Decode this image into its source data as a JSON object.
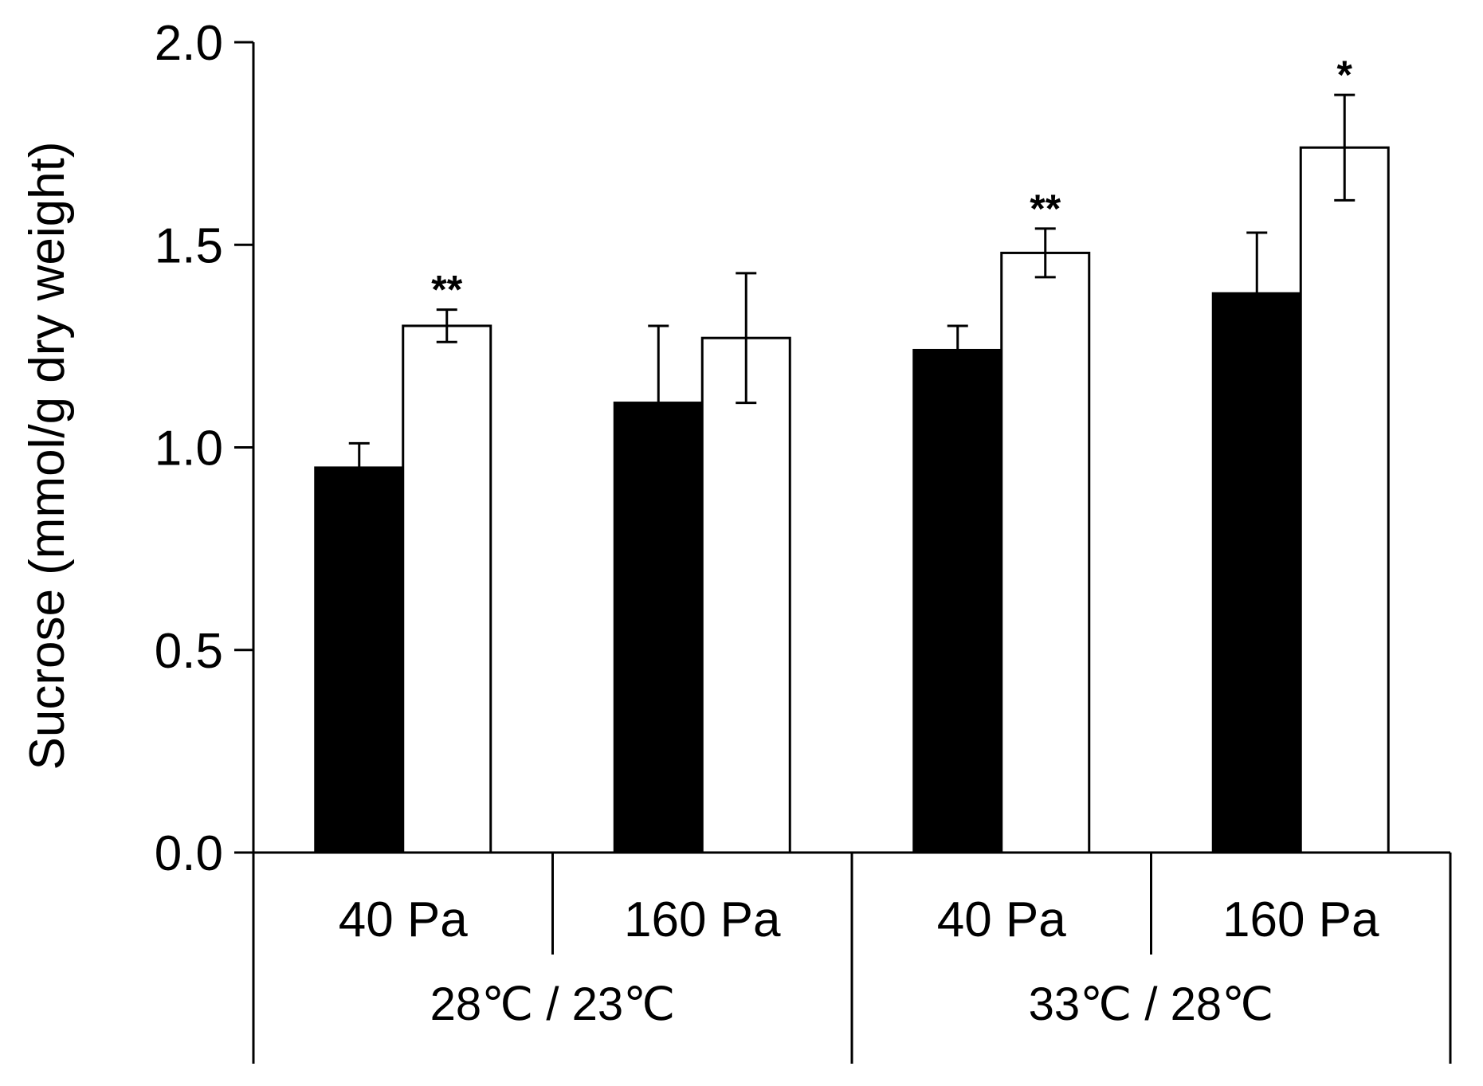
{
  "chart_data": {
    "type": "bar",
    "title": "",
    "ylabel": "Sucrose (mmol/g dry weight)",
    "xlabel": "",
    "ylim": [
      0,
      2.0
    ],
    "yticks": [
      "0.0",
      "0.5",
      "1.0",
      "1.5",
      "2.0"
    ],
    "ytick_values": [
      0,
      0.5,
      1.0,
      1.5,
      2.0
    ],
    "categories": [
      "40 Pa",
      "160 Pa",
      "40 Pa",
      "160 Pa"
    ],
    "groups": [
      {
        "label": "28℃ / 23℃",
        "span": [
          0,
          1
        ]
      },
      {
        "label": "33℃ / 28℃",
        "span": [
          2,
          3
        ]
      }
    ],
    "series": [
      {
        "name": "series-black",
        "color": "#000000",
        "values": [
          0.95,
          1.11,
          1.24,
          1.38
        ],
        "errors": [
          0.06,
          0.19,
          0.06,
          0.15
        ],
        "significance": [
          "",
          "",
          "",
          ""
        ]
      },
      {
        "name": "series-white",
        "color": "#ffffff",
        "values": [
          1.3,
          1.27,
          1.48,
          1.74
        ],
        "errors": [
          0.04,
          0.16,
          0.06,
          0.13
        ],
        "significance": [
          "**",
          "",
          "**",
          "*"
        ]
      }
    ],
    "grid": false,
    "legend": "none"
  }
}
